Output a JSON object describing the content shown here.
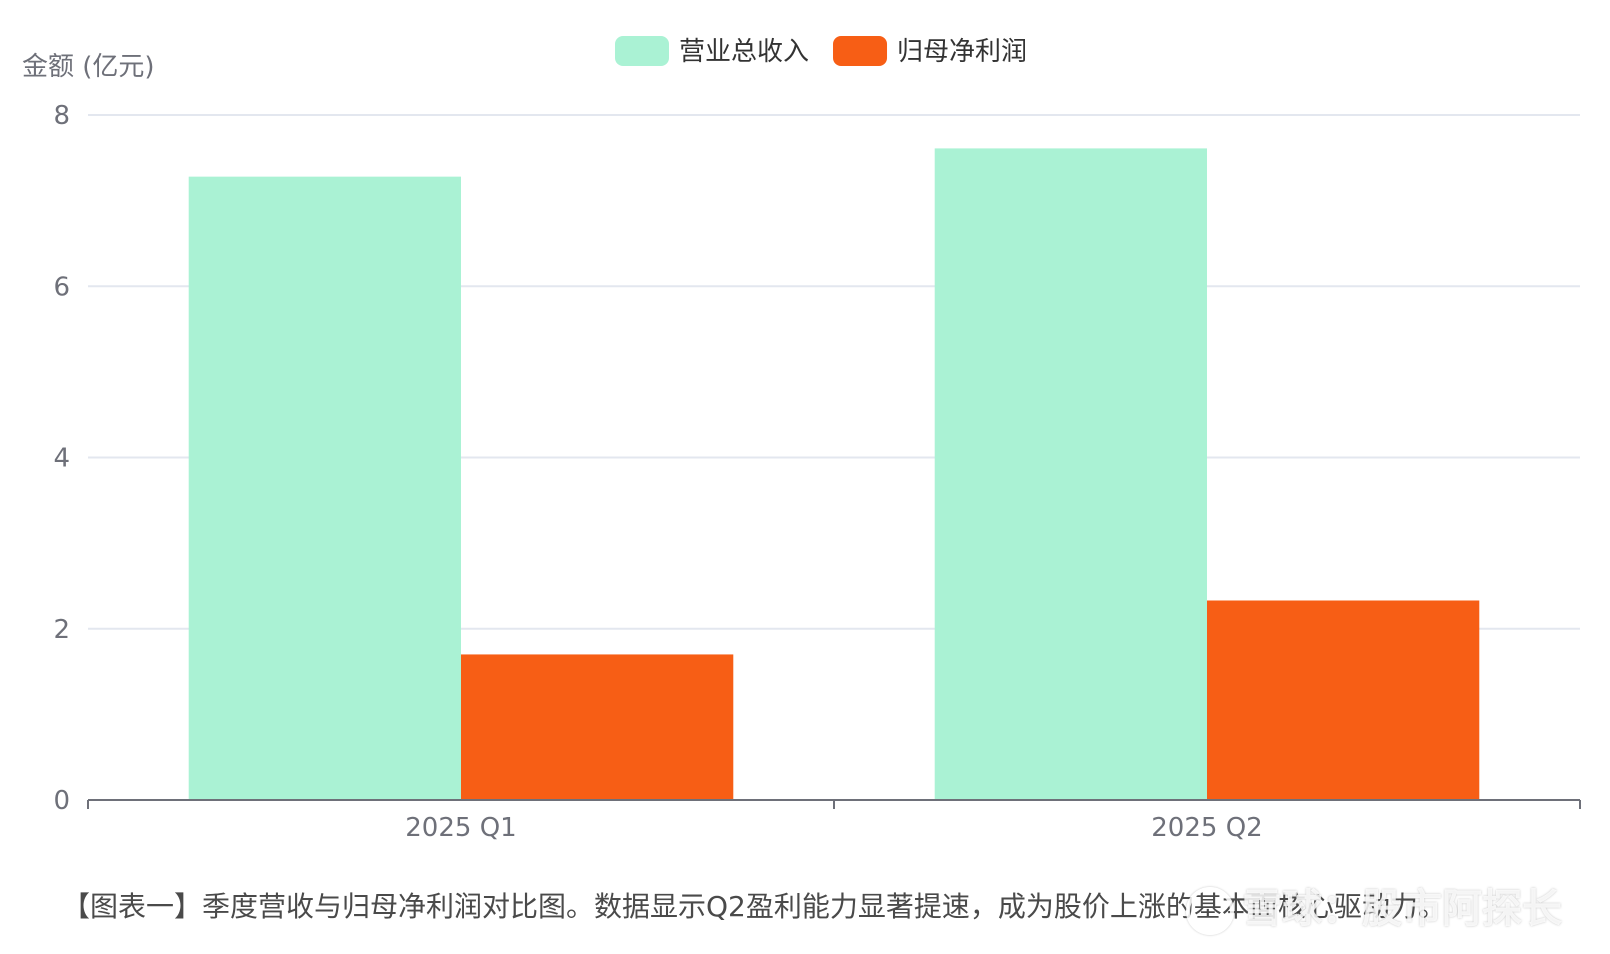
{
  "chart_data": {
    "type": "bar",
    "ylabel": "金额 (亿元)",
    "ylim": [
      0,
      8
    ],
    "yticks": [
      0,
      2,
      4,
      6,
      8
    ],
    "grid": true,
    "legend": "top-center",
    "categories": [
      "2025 Q1",
      "2025 Q2"
    ],
    "series": [
      {
        "name": "营业总收入",
        "values": [
          7.28,
          7.61
        ],
        "color": "#aaf2d4"
      },
      {
        "name": "归母净利润",
        "values": [
          1.7,
          2.33
        ],
        "color": "#f75e15"
      }
    ]
  },
  "caption": "【图表一】季度营收与归母净利润对比图。数据显示Q2盈利能力显著提速，成为股价上涨的基本面核心驱动力。",
  "watermark": "雪球：股市阿探长",
  "colors": {
    "grid": "#e3e7ef",
    "axis": "#6e7079",
    "label": "#6e7079"
  }
}
